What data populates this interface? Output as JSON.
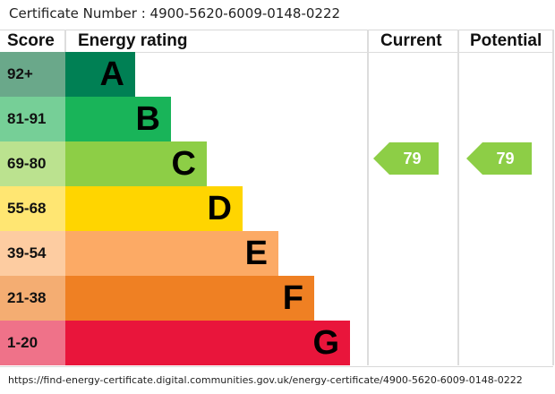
{
  "certificate_line": "Certificate Number : 4900-5620-6009-0148-0222",
  "url": "https://find-energy-certificate.digital.communities.gov.uk/energy-certificate/4900-5620-6009-0148-0222",
  "chart_data": {
    "type": "bar",
    "headers": {
      "score": "Score",
      "rating": "Energy rating",
      "current": "Current",
      "potential": "Potential"
    },
    "bands": [
      {
        "score": "92+",
        "letter": "A",
        "color": "#008054",
        "score_bg": "#6aa88a"
      },
      {
        "score": "81-91",
        "letter": "B",
        "color": "#19b459",
        "score_bg": "#76cf97"
      },
      {
        "score": "69-80",
        "letter": "C",
        "color": "#8dce46",
        "score_bg": "#bbe28f"
      },
      {
        "score": "55-68",
        "letter": "D",
        "color": "#ffd500",
        "score_bg": "#ffe672"
      },
      {
        "score": "39-54",
        "letter": "E",
        "color": "#fcaa65",
        "score_bg": "#fdcca1"
      },
      {
        "score": "21-38",
        "letter": "F",
        "color": "#ef8023",
        "score_bg": "#f4ad72"
      },
      {
        "score": "1-20",
        "letter": "G",
        "color": "#e9153b",
        "score_bg": "#ef7289"
      }
    ],
    "current": {
      "value": "79",
      "band": "C",
      "color": "#8dce46"
    },
    "potential": {
      "value": "79",
      "band": "C",
      "color": "#8dce46"
    }
  }
}
